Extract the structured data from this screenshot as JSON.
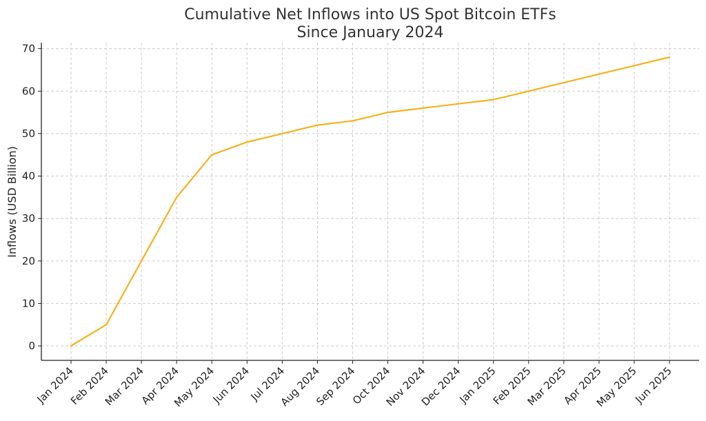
{
  "chart_data": {
    "type": "line",
    "title_line1": "Cumulative Net Inflows into US Spot Bitcoin ETFs",
    "title_line2": "Since January 2024",
    "xlabel": "",
    "ylabel": "Inflows (USD Billion)",
    "categories": [
      "Jan 2024",
      "Feb 2024",
      "Mar 2024",
      "Apr 2024",
      "May 2024",
      "Jun 2024",
      "Jul 2024",
      "Aug 2024",
      "Sep 2024",
      "Oct 2024",
      "Nov 2024",
      "Dec 2024",
      "Jan 2025",
      "Feb 2025",
      "Mar 2025",
      "Apr 2025",
      "May 2025",
      "Jun 2025"
    ],
    "series": [
      {
        "values": [
          0,
          5,
          20,
          35,
          45,
          48,
          50,
          52,
          53,
          55,
          56,
          57,
          58,
          60,
          62,
          64,
          66,
          68
        ],
        "color": "#f5b21b"
      }
    ],
    "yticks": [
      0,
      10,
      20,
      30,
      40,
      50,
      60,
      70
    ],
    "ylim": [
      -3.4,
      71.4
    ],
    "grid": true,
    "legend": "none"
  }
}
